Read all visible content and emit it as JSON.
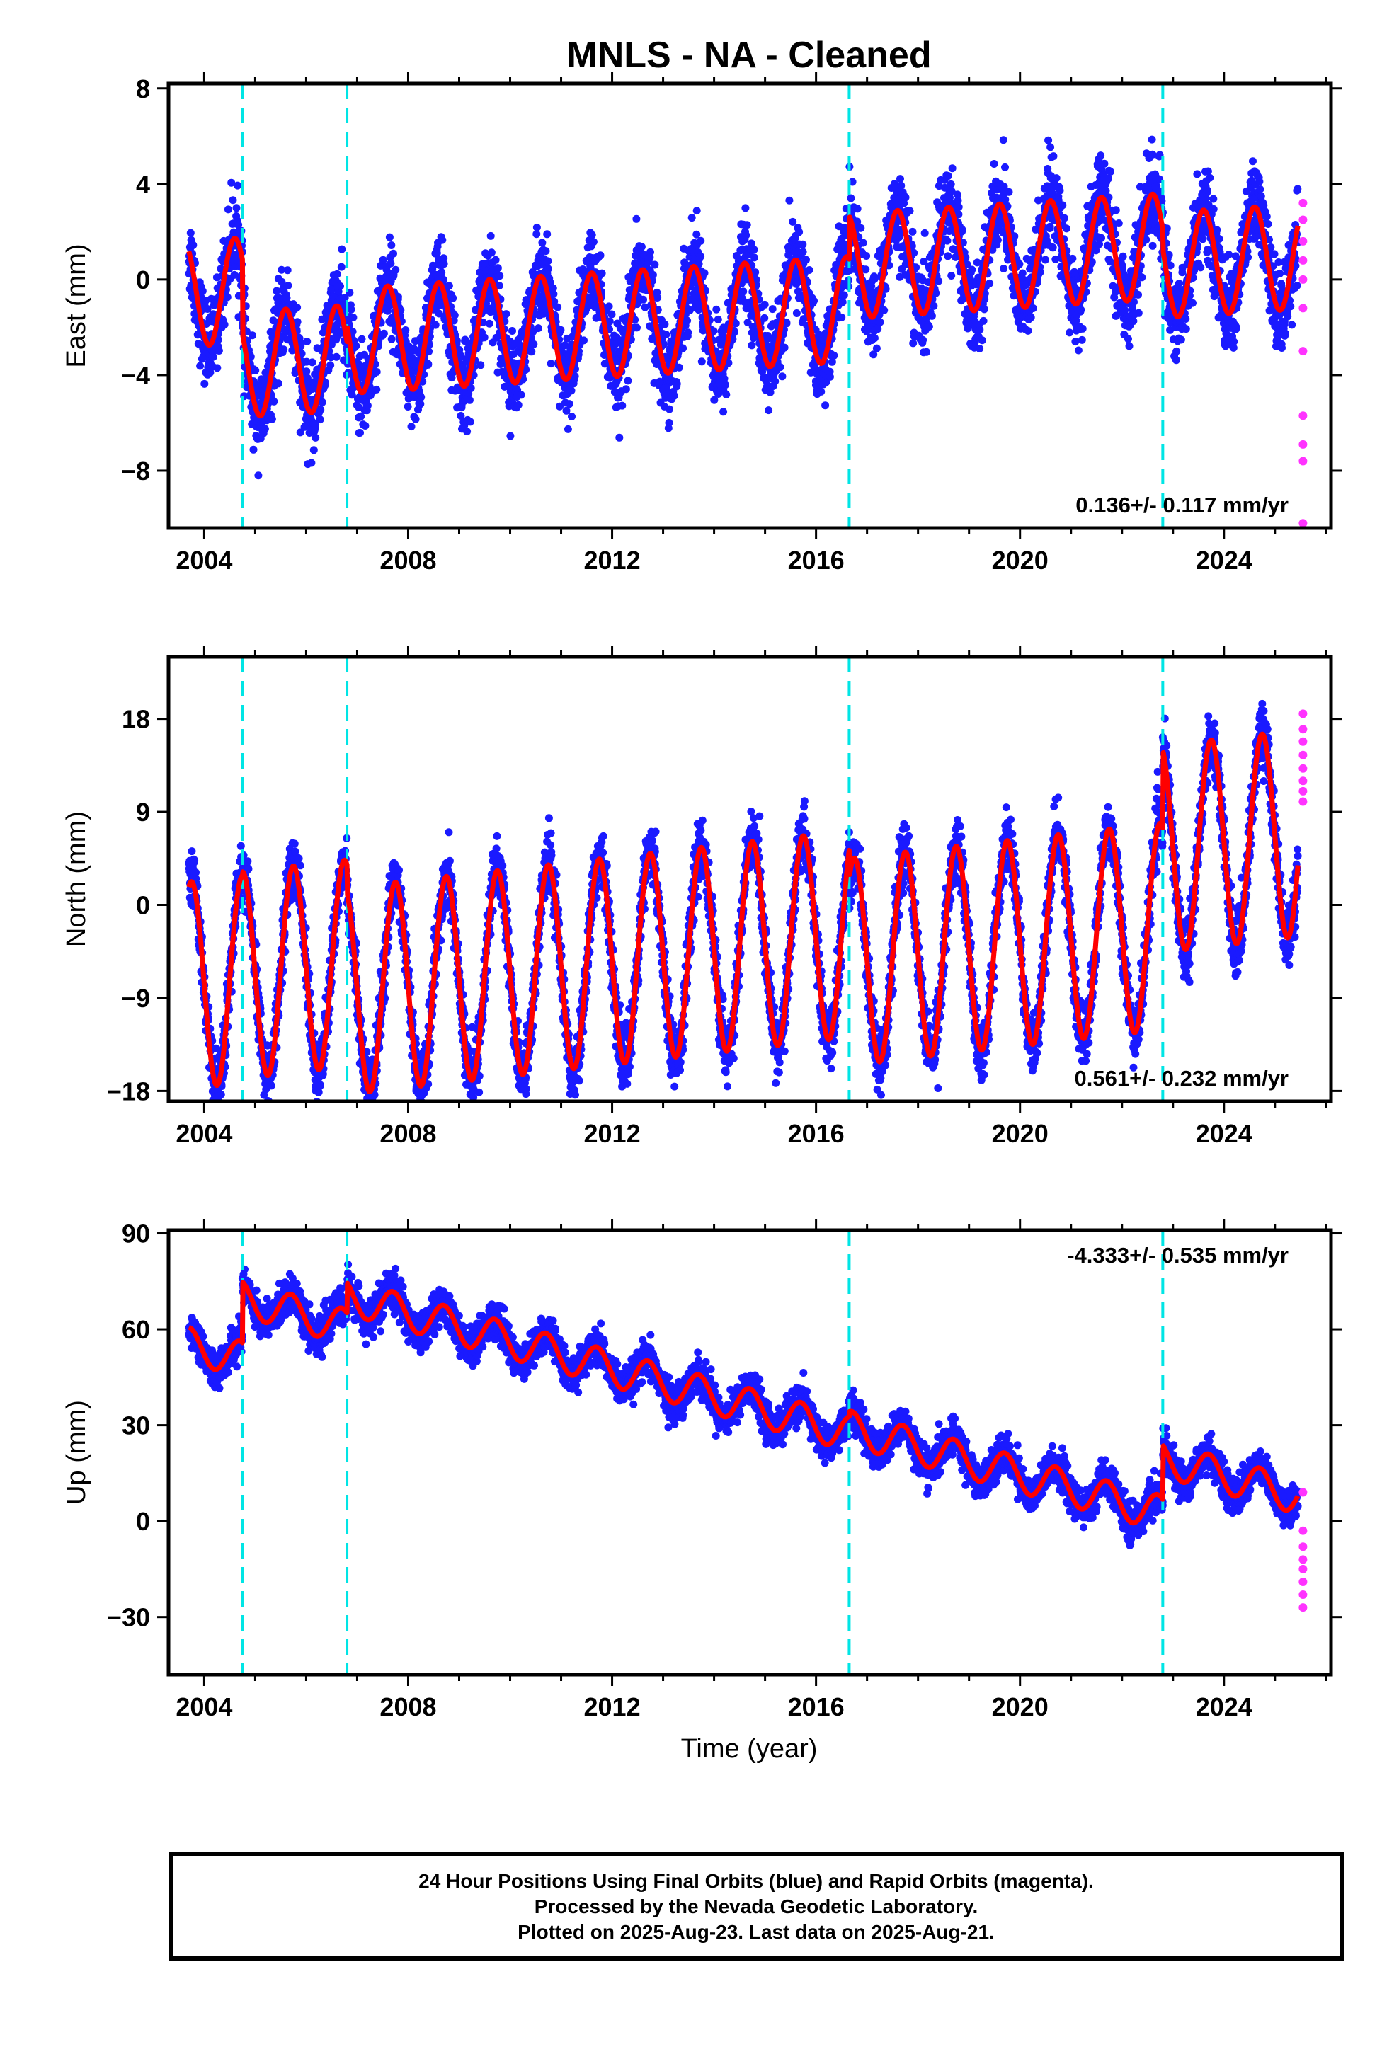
{
  "title": "MNLS  - NA - Cleaned",
  "xlabel": "Time (year)",
  "footer": {
    "line1": "24 Hour Positions Using Final Orbits (blue) and Rapid Orbits (magenta).",
    "line2": "Processed by the Nevada Geodetic Laboratory.",
    "line3": "Plotted on 2025-Aug-23. Last data on 2025-Aug-21."
  },
  "colors": {
    "final_orbits": "#1a1aff",
    "rapid_orbits": "#ff33ff",
    "model_fit": "#ff0000",
    "offsets": "#00e5e5",
    "frame": "#000000"
  },
  "chart_data": [
    {
      "type": "scatter",
      "component": "east",
      "ylabel": "East (mm)",
      "xlim": [
        2003.3,
        2026.1
      ],
      "ylim": [
        -10.4,
        8.2
      ],
      "xticks": [
        2004,
        2008,
        2012,
        2016,
        2020,
        2024
      ],
      "yticks": [
        -8,
        -4,
        0,
        4,
        8
      ],
      "ytick_labels": [
        "−8",
        "−4",
        "0",
        "4",
        "8"
      ],
      "rate_text": "0.136+/- 0.117 mm/yr",
      "rate_position": "bottom-right",
      "data_start": 2003.7,
      "data_end": 2025.45,
      "offsets": [
        2004.75,
        2006.8,
        2016.65,
        2022.8
      ],
      "model": {
        "rate": 0.136,
        "annual_amplitude": 2.2,
        "annual_phase": 0.35,
        "scatter": 1.6,
        "segments": [
          {
            "start": 2003.7,
            "level": 0.8
          },
          {
            "start": 2004.75,
            "level": -2.3
          },
          {
            "start": 2006.8,
            "level": -1.6
          },
          {
            "start": 2016.65,
            "level": 0.2
          },
          {
            "start": 2022.8,
            "level": -0.6
          }
        ]
      },
      "rapid": {
        "x": 2025.55,
        "values": [
          3.2,
          2.5,
          1.6,
          0.8,
          0.0,
          -1.2,
          -3.0,
          -5.7,
          -6.9,
          -7.6,
          -10.2
        ]
      }
    },
    {
      "type": "scatter",
      "component": "north",
      "ylabel": "North (mm)",
      "xlim": [
        2003.3,
        2026.1
      ],
      "ylim": [
        -19,
        24
      ],
      "xticks": [
        2004,
        2008,
        2012,
        2016,
        2020,
        2024
      ],
      "yticks": [
        -18,
        -9,
        0,
        9,
        18
      ],
      "ytick_labels": [
        "−18",
        "−9",
        "0",
        "9",
        "18"
      ],
      "rate_text": "0.561+/- 0.232 mm/yr",
      "rate_position": "bottom-right",
      "data_start": 2003.7,
      "data_end": 2025.45,
      "offsets": [
        2004.75,
        2006.8,
        2016.65,
        2022.8
      ],
      "model": {
        "rate": 0.561,
        "annual_amplitude": 10.0,
        "annual_phase": 0.5,
        "scatter": 2.6,
        "segments": [
          {
            "start": 2003.7,
            "level": -2.0
          },
          {
            "start": 2004.75,
            "level": -1.6
          },
          {
            "start": 2006.8,
            "level": -4.3
          },
          {
            "start": 2016.65,
            "level": -7.0
          },
          {
            "start": 2022.8,
            "level": 0.5
          }
        ]
      },
      "rapid": {
        "x": 2025.55,
        "values": [
          18.5,
          17.0,
          15.8,
          14.5,
          13.2,
          12.0,
          11.0,
          10.0
        ]
      }
    },
    {
      "type": "scatter",
      "component": "up",
      "ylabel": "Up (mm)",
      "xlim": [
        2003.3,
        2026.1
      ],
      "ylim": [
        -48,
        91
      ],
      "xticks": [
        2004,
        2008,
        2012,
        2016,
        2020,
        2024
      ],
      "yticks": [
        -30,
        0,
        30,
        60,
        90
      ],
      "ytick_labels": [
        "−30",
        "0",
        "30",
        "60",
        "90"
      ],
      "rate_text": "-4.333+/- 0.535 mm/yr",
      "rate_position": "top-right",
      "data_start": 2003.7,
      "data_end": 2025.45,
      "offsets": [
        2004.75,
        2006.8,
        2016.65,
        2022.8
      ],
      "model": {
        "rate": -4.333,
        "annual_amplitude": 5.5,
        "annual_phase": 0.45,
        "scatter": 5.0,
        "segments": [
          {
            "start": 2003.7,
            "level": 10.5
          },
          {
            "start": 2004.75,
            "level": 29.5
          },
          {
            "start": 2006.8,
            "level": 39.0
          },
          {
            "start": 2016.65,
            "level": 40.5
          },
          {
            "start": 2022.8,
            "level": 57.5
          }
        ]
      },
      "rapid": {
        "x": 2025.55,
        "values": [
          9.0,
          -3.0,
          -8.0,
          -12.0,
          -15.0,
          -19.0,
          -23.0,
          -27.0
        ]
      }
    }
  ]
}
